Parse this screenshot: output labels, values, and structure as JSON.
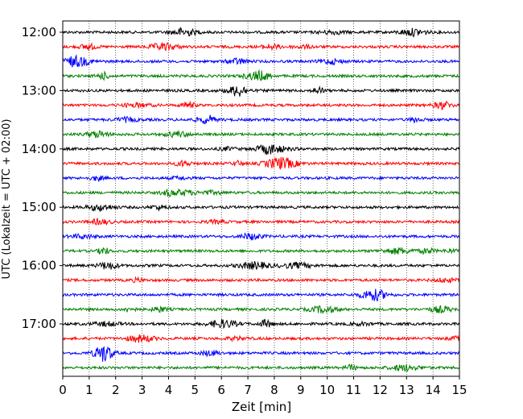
{
  "chart_data": {
    "type": "line",
    "subtype": "helicorder",
    "title": "",
    "xlabel": "Zeit  [min]",
    "ylabel": "UTC (Lokalzeit = UTC + 02:00)",
    "xlim": [
      0,
      15
    ],
    "x_ticks": [
      "0",
      "1",
      "2",
      "3",
      "4",
      "5",
      "6",
      "7",
      "8",
      "9",
      "10",
      "11",
      "12",
      "13",
      "14",
      "15"
    ],
    "y_tick_labels": [
      "12:00",
      "13:00",
      "14:00",
      "15:00",
      "16:00",
      "17:00"
    ],
    "trace_start_hours": [
      12.0,
      12.25,
      12.5,
      12.75,
      13.0,
      13.25,
      13.5,
      13.75,
      14.0,
      14.25,
      14.5,
      14.75,
      15.0,
      15.25,
      15.5,
      15.75,
      16.0,
      16.25,
      16.5,
      16.75,
      17.0,
      17.25,
      17.5,
      17.75
    ],
    "trace_color_cycle": [
      "#000000",
      "#ff0000",
      "#0000ff",
      "#008000"
    ],
    "vertical_gridlines": true,
    "gridline_style": "dotted"
  }
}
